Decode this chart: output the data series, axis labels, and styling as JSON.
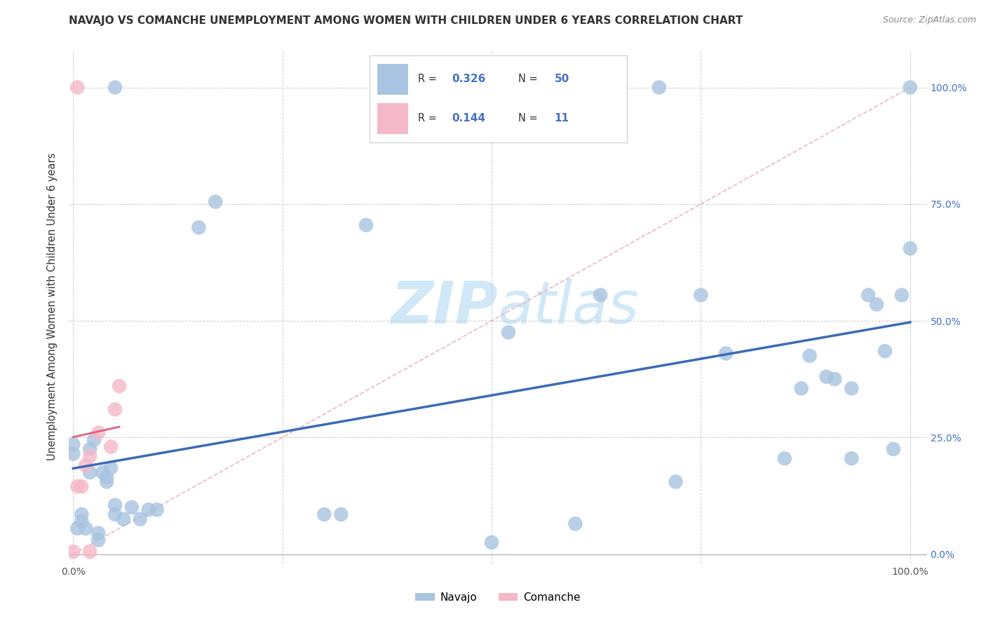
{
  "title": "NAVAJO VS COMANCHE UNEMPLOYMENT AMONG WOMEN WITH CHILDREN UNDER 6 YEARS CORRELATION CHART",
  "source": "Source: ZipAtlas.com",
  "ylabel": "Unemployment Among Women with Children Under 6 years",
  "navajo_R": 0.326,
  "navajo_N": 50,
  "comanche_R": 0.144,
  "comanche_N": 11,
  "navajo_color": "#a8c4e0",
  "comanche_color": "#f4b8c8",
  "navajo_line_color": "#3a6bb5",
  "comanche_line_color": "#e06080",
  "diag_line_color": "#e8b0c0",
  "watermark_color": "#d0e8f8",
  "navajo_x": [
    0.0,
    0.0,
    0.005,
    0.01,
    0.01,
    0.015,
    0.02,
    0.02,
    0.025,
    0.03,
    0.03,
    0.035,
    0.04,
    0.04,
    0.045,
    0.05,
    0.05,
    0.05,
    0.06,
    0.07,
    0.08,
    0.09,
    0.1,
    0.15,
    0.17,
    0.3,
    0.32,
    0.35,
    0.5,
    0.52,
    0.6,
    0.63,
    0.7,
    0.72,
    0.75,
    0.78,
    0.85,
    0.87,
    0.88,
    0.9,
    0.91,
    0.93,
    0.93,
    0.95,
    0.96,
    0.97,
    0.98,
    0.99,
    1.0,
    1.0
  ],
  "navajo_y": [
    0.215,
    0.235,
    0.055,
    0.07,
    0.085,
    0.055,
    0.175,
    0.225,
    0.245,
    0.03,
    0.045,
    0.175,
    0.155,
    0.165,
    0.185,
    0.085,
    0.105,
    1.0,
    0.075,
    0.1,
    0.075,
    0.095,
    0.095,
    0.7,
    0.755,
    0.085,
    0.085,
    0.705,
    0.025,
    0.475,
    0.065,
    0.555,
    1.0,
    0.155,
    0.555,
    0.43,
    0.205,
    0.355,
    0.425,
    0.38,
    0.375,
    0.205,
    0.355,
    0.555,
    0.535,
    0.435,
    0.225,
    0.555,
    0.655,
    1.0
  ],
  "comanche_x": [
    0.0,
    0.005,
    0.005,
    0.01,
    0.015,
    0.02,
    0.02,
    0.03,
    0.045,
    0.05,
    0.055
  ],
  "comanche_y": [
    0.005,
    0.145,
    1.0,
    0.145,
    0.19,
    0.005,
    0.21,
    0.26,
    0.23,
    0.31,
    0.36
  ],
  "background_color": "#ffffff",
  "grid_color": "#cccccc",
  "ytick_values": [
    0.0,
    0.25,
    0.5,
    0.75,
    1.0
  ],
  "ytick_labels": [
    "0.0%",
    "25.0%",
    "50.0%",
    "75.0%",
    "100.0%"
  ]
}
